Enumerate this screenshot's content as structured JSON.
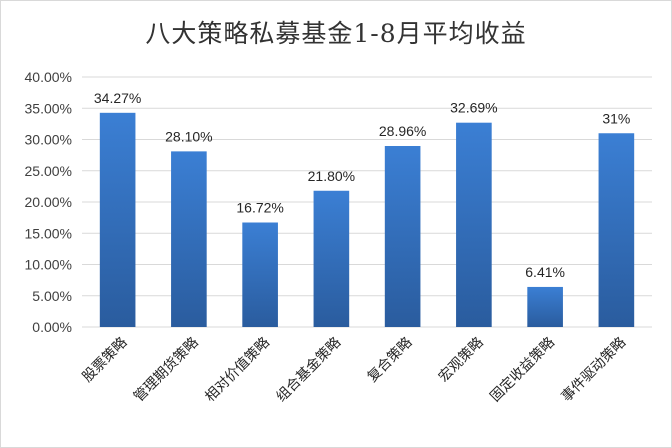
{
  "chart_data": {
    "type": "bar",
    "title": "八大策略私募基金1-8月平均收益",
    "categories": [
      "股票策略",
      "管理期货策略",
      "相对价值策略",
      "组合基金策略",
      "复合策略",
      "宏观策略",
      "固定收益策略",
      "事件驱动策略"
    ],
    "values": [
      34.27,
      28.1,
      16.72,
      21.8,
      28.96,
      32.69,
      6.41,
      31
    ],
    "data_labels": [
      "34.27%",
      "28.10%",
      "16.72%",
      "21.80%",
      "28.96%",
      "32.69%",
      "6.41%",
      "31%"
    ],
    "yticks": [
      "0.00%",
      "5.00%",
      "10.00%",
      "15.00%",
      "20.00%",
      "25.00%",
      "30.00%",
      "35.00%",
      "40.00%"
    ],
    "ylim": [
      0,
      40
    ],
    "grid": true,
    "legend": "none",
    "colors": {
      "bar_top": "#3b7fd4",
      "bar_bottom": "#2a5c9e",
      "grid": "#d9d9d9"
    }
  }
}
